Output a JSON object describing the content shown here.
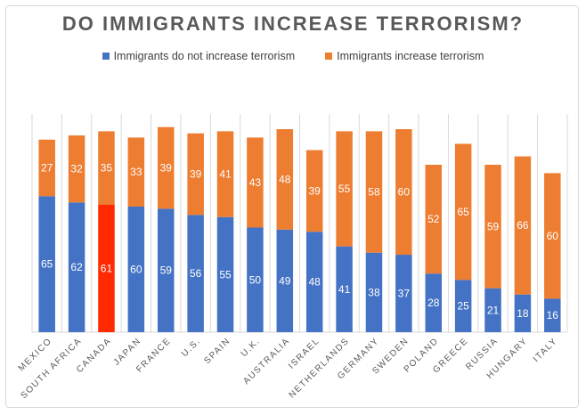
{
  "chart_data": {
    "type": "bar",
    "stacked": true,
    "title": "DO IMMIGRANTS INCREASE TERRORISM?",
    "categories": [
      "MEXICO",
      "SOUTH AFRICA",
      "CANADA",
      "JAPAN",
      "FRANCE",
      "U.S.",
      "SPAIN",
      "U.K.",
      "AUSTRALIA",
      "ISRAEL",
      "NETHERLANDS",
      "GERMANY",
      "SWEDEN",
      "POLAND",
      "GREECE",
      "RUSSIA",
      "HUNGARY",
      "ITALY"
    ],
    "series": [
      {
        "name": "Immigrants do not increase terrorism",
        "color": "#4472c4",
        "values": [
          65,
          62,
          61,
          60,
          59,
          56,
          55,
          50,
          49,
          48,
          41,
          38,
          37,
          28,
          25,
          21,
          18,
          16
        ]
      },
      {
        "name": "Immigrants increase terrorism",
        "color": "#ed7d31",
        "values": [
          27,
          32,
          35,
          33,
          39,
          39,
          41,
          43,
          48,
          39,
          55,
          58,
          60,
          52,
          65,
          59,
          66,
          60
        ]
      }
    ],
    "highlight": {
      "category": "CANADA",
      "series": 0,
      "color": "#ff2a00"
    },
    "ylim": [
      0,
      100
    ],
    "grid": "vertical category separators",
    "legend_position": "top",
    "data_labels": true
  }
}
